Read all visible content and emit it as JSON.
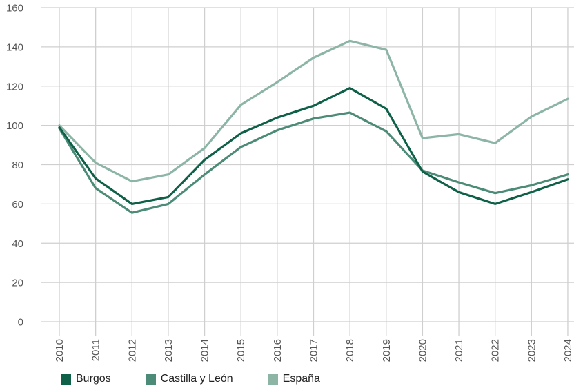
{
  "chart_data": {
    "type": "line",
    "title": "",
    "xlabel": "",
    "ylabel": "",
    "x": [
      "2010",
      "2011",
      "2012",
      "2013",
      "2014",
      "2015",
      "2016",
      "2017",
      "2018",
      "2019",
      "2020",
      "2021",
      "2022",
      "2023",
      "2024"
    ],
    "ylim": [
      0,
      160
    ],
    "yticks": [
      0,
      20,
      40,
      60,
      80,
      100,
      120,
      140,
      160
    ],
    "grid": true,
    "legend_position": "bottom-left",
    "series": [
      {
        "name": "Burgos",
        "color": "#0e6048",
        "values": [
          99,
          73,
          60,
          63.5,
          82.5,
          96,
          104,
          110,
          119,
          108.5,
          76.5,
          66,
          60,
          66,
          72.5
        ]
      },
      {
        "name": "Castilla y León",
        "color": "#4c8b78",
        "values": [
          98.5,
          68,
          55.5,
          60,
          75,
          89,
          97.5,
          103.5,
          106.5,
          97,
          77,
          71,
          65.5,
          69.5,
          75
        ]
      },
      {
        "name": "España",
        "color": "#8cb5a6",
        "values": [
          100,
          81,
          71.5,
          75,
          88.5,
          110.5,
          122,
          134.5,
          143,
          138.5,
          93.5,
          95.5,
          91,
          104.5,
          113.5
        ]
      }
    ]
  }
}
